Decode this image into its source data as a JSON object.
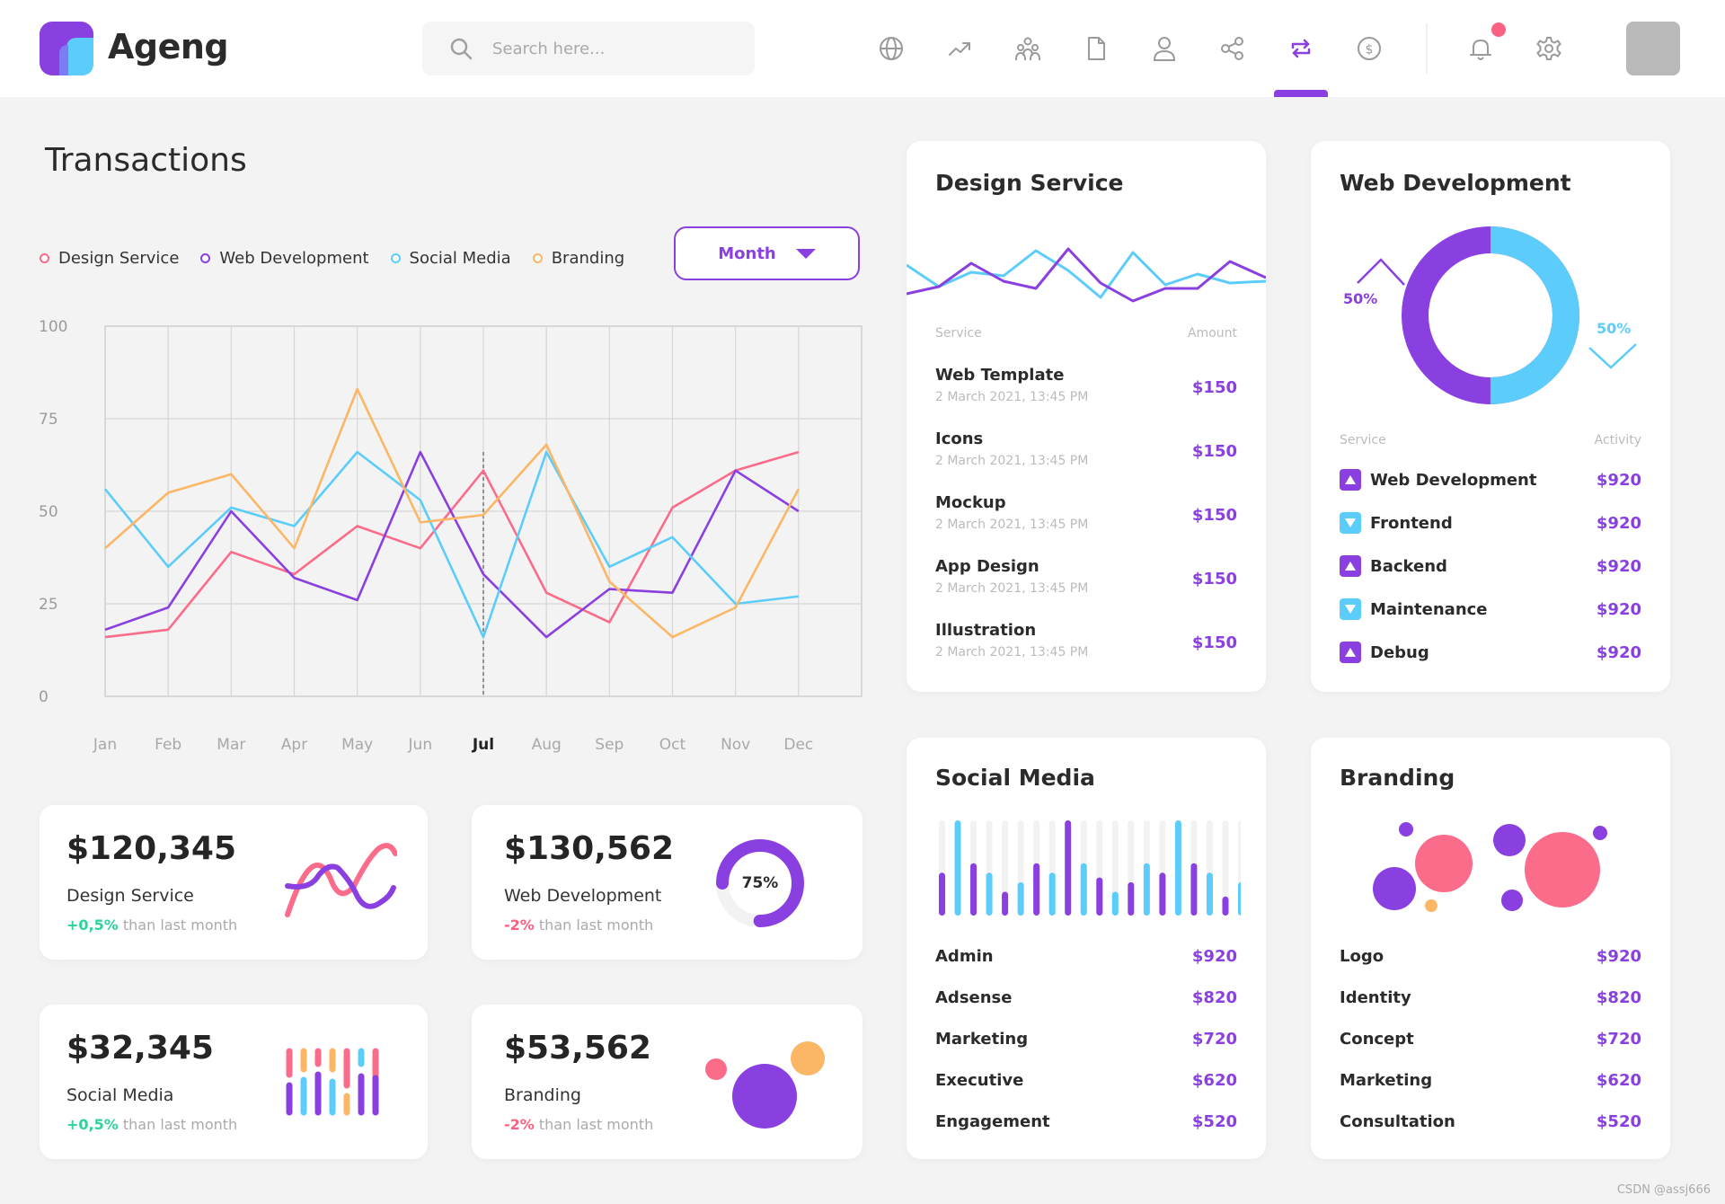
{
  "app": {
    "name": "Ageng"
  },
  "search": {
    "placeholder": "Search here..."
  },
  "nav": {
    "icons": [
      "globe-icon",
      "trend-icon",
      "team-icon",
      "document-icon",
      "user-icon",
      "share-icon",
      "transactions-icon",
      "dollar-icon"
    ],
    "active": "transactions-icon"
  },
  "page": {
    "title": "Transactions"
  },
  "filter": {
    "selected": "Month"
  },
  "colors": {
    "design": "#fb6b8a",
    "web": "#8a3fe0",
    "social": "#5ccdfb",
    "branding": "#fbb666",
    "accent": "#8a3fe0"
  },
  "chart_data": {
    "type": "line",
    "title": "Transactions",
    "categories": [
      "Jan",
      "Feb",
      "Mar",
      "Apr",
      "May",
      "Jun",
      "Jul",
      "Aug",
      "Sep",
      "Oct",
      "Nov",
      "Dec"
    ],
    "highlight": "Jul",
    "ylim": [
      0,
      100
    ],
    "yticks": [
      0,
      25,
      50,
      75,
      100
    ],
    "grid": true,
    "series": [
      {
        "name": "Design Service",
        "color": "#fb6b8a",
        "values": [
          16,
          18,
          39,
          33,
          46,
          40,
          61,
          28,
          20,
          51,
          61,
          66
        ]
      },
      {
        "name": "Web Development",
        "color": "#8a3fe0",
        "values": [
          18,
          24,
          50,
          32,
          26,
          66,
          33,
          16,
          29,
          28,
          61,
          50
        ]
      },
      {
        "name": "Social Media",
        "color": "#5ccdfb",
        "values": [
          56,
          35,
          51,
          46,
          66,
          53,
          16,
          66,
          35,
          43,
          25,
          27
        ]
      },
      {
        "name": "Branding",
        "color": "#fbb666",
        "values": [
          40,
          55,
          60,
          40,
          83,
          47,
          49,
          68,
          31,
          16,
          24,
          56
        ]
      }
    ]
  },
  "stats": [
    {
      "amount": "$120,345",
      "label": "Design Service",
      "delta": "+0,5%",
      "trend": "up",
      "suffix": "than last month"
    },
    {
      "amount": "$130,562",
      "label": "Web Development",
      "delta": "-2%",
      "trend": "down",
      "suffix": "than last month",
      "donut_label": "75%",
      "donut_value": 0.75
    },
    {
      "amount": "$32,345",
      "label": "Social Media",
      "delta": "+0,5%",
      "trend": "up",
      "suffix": "than last month"
    },
    {
      "amount": "$53,562",
      "label": "Branding",
      "delta": "-2%",
      "trend": "down",
      "suffix": "than last month"
    }
  ],
  "design_service": {
    "title": "Design Service",
    "col_service": "Service",
    "col_amount": "Amount",
    "rows": [
      {
        "name": "Web Template",
        "date": "2 March 2021, 13:45 PM",
        "amount": "$150"
      },
      {
        "name": "Icons",
        "date": "2 March 2021, 13:45 PM",
        "amount": "$150"
      },
      {
        "name": "Mockup",
        "date": "2 March 2021, 13:45 PM",
        "amount": "$150"
      },
      {
        "name": "App Design",
        "date": "2 March 2021, 13:45 PM",
        "amount": "$150"
      },
      {
        "name": "Illustration",
        "date": "2 March 2021, 13:45 PM",
        "amount": "$150"
      }
    ]
  },
  "web_development": {
    "title": "Web Development",
    "left_pct": "50%",
    "right_pct": "50%",
    "donut_split": 0.5,
    "col_service": "Service",
    "col_activity": "Activity",
    "rows": [
      {
        "name": "Web Development",
        "amount": "$920",
        "dir": "up"
      },
      {
        "name": "Frontend",
        "amount": "$920",
        "dir": "down"
      },
      {
        "name": "Backend",
        "amount": "$920",
        "dir": "up"
      },
      {
        "name": "Maintenance",
        "amount": "$920",
        "dir": "down"
      },
      {
        "name": "Debug",
        "amount": "$920",
        "dir": "up"
      }
    ]
  },
  "social_media": {
    "title": "Social Media",
    "bars": [
      0.45,
      1.0,
      0.55,
      0.45,
      0.25,
      0.35,
      0.55,
      0.45,
      1.0,
      0.55,
      0.4,
      0.25,
      0.35,
      0.55,
      0.45,
      1.0,
      0.55,
      0.45,
      0.2,
      0.35
    ],
    "rows": [
      {
        "name": "Admin",
        "amount": "$920"
      },
      {
        "name": "Adsense",
        "amount": "$820"
      },
      {
        "name": "Marketing",
        "amount": "$720"
      },
      {
        "name": "Executive",
        "amount": "$620"
      },
      {
        "name": "Engagement",
        "amount": "$520"
      }
    ]
  },
  "branding": {
    "title": "Branding",
    "rows": [
      {
        "name": "Logo",
        "amount": "$920"
      },
      {
        "name": "Identity",
        "amount": "$820"
      },
      {
        "name": "Concept",
        "amount": "$720"
      },
      {
        "name": "Marketing",
        "amount": "$620"
      },
      {
        "name": "Consultation",
        "amount": "$520"
      }
    ]
  },
  "watermark": "CSDN @assj666"
}
